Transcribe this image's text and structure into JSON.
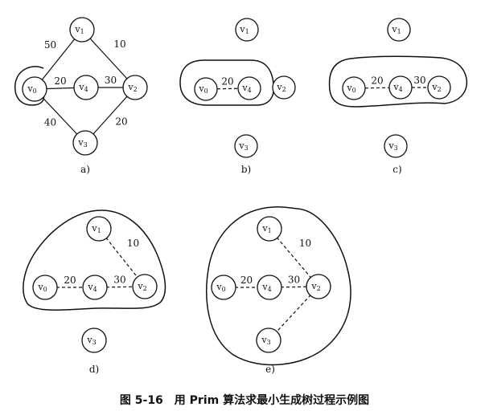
{
  "caption": "图 5-16　用 Prim 算法求最小生成树过程示例图",
  "vertices": [
    {
      "id": "v0",
      "main": "v",
      "sub": "0"
    },
    {
      "id": "v1",
      "main": "v",
      "sub": "1"
    },
    {
      "id": "v2",
      "main": "v",
      "sub": "2"
    },
    {
      "id": "v3",
      "main": "v",
      "sub": "3"
    },
    {
      "id": "v4",
      "main": "v",
      "sub": "4"
    }
  ],
  "graph_edges": [
    {
      "from": "v0",
      "to": "v1",
      "weight": "50"
    },
    {
      "from": "v1",
      "to": "v2",
      "weight": "10"
    },
    {
      "from": "v0",
      "to": "v4",
      "weight": "20"
    },
    {
      "from": "v4",
      "to": "v2",
      "weight": "30"
    },
    {
      "from": "v0",
      "to": "v3",
      "weight": "40"
    },
    {
      "from": "v3",
      "to": "v2",
      "weight": "20"
    }
  ],
  "panels": [
    {
      "label": "a)",
      "type": "graph",
      "selected": [
        "v0"
      ]
    },
    {
      "label": "b)",
      "type": "step",
      "selected": [
        "v0",
        "v4"
      ],
      "tree_edges": [
        {
          "from": "v0",
          "to": "v4",
          "weight": "20"
        }
      ]
    },
    {
      "label": "c)",
      "type": "step",
      "selected": [
        "v0",
        "v4",
        "v2"
      ],
      "tree_edges": [
        {
          "from": "v0",
          "to": "v4",
          "weight": "20"
        },
        {
          "from": "v4",
          "to": "v2",
          "weight": "30"
        }
      ]
    },
    {
      "label": "d)",
      "type": "step",
      "selected": [
        "v0",
        "v4",
        "v2",
        "v1"
      ],
      "tree_edges": [
        {
          "from": "v1",
          "to": "v2",
          "weight": "10"
        },
        {
          "from": "v0",
          "to": "v4",
          "weight": "20"
        },
        {
          "from": "v4",
          "to": "v2",
          "weight": "30"
        }
      ]
    },
    {
      "label": "e)",
      "type": "step",
      "selected": [
        "v0",
        "v4",
        "v2",
        "v1",
        "v3"
      ],
      "tree_edges": [
        {
          "from": "v1",
          "to": "v2",
          "weight": "10"
        },
        {
          "from": "v0",
          "to": "v4",
          "weight": "20"
        },
        {
          "from": "v4",
          "to": "v2",
          "weight": "30"
        },
        {
          "from": "v2",
          "to": "v3",
          "weight": ""
        }
      ]
    }
  ]
}
